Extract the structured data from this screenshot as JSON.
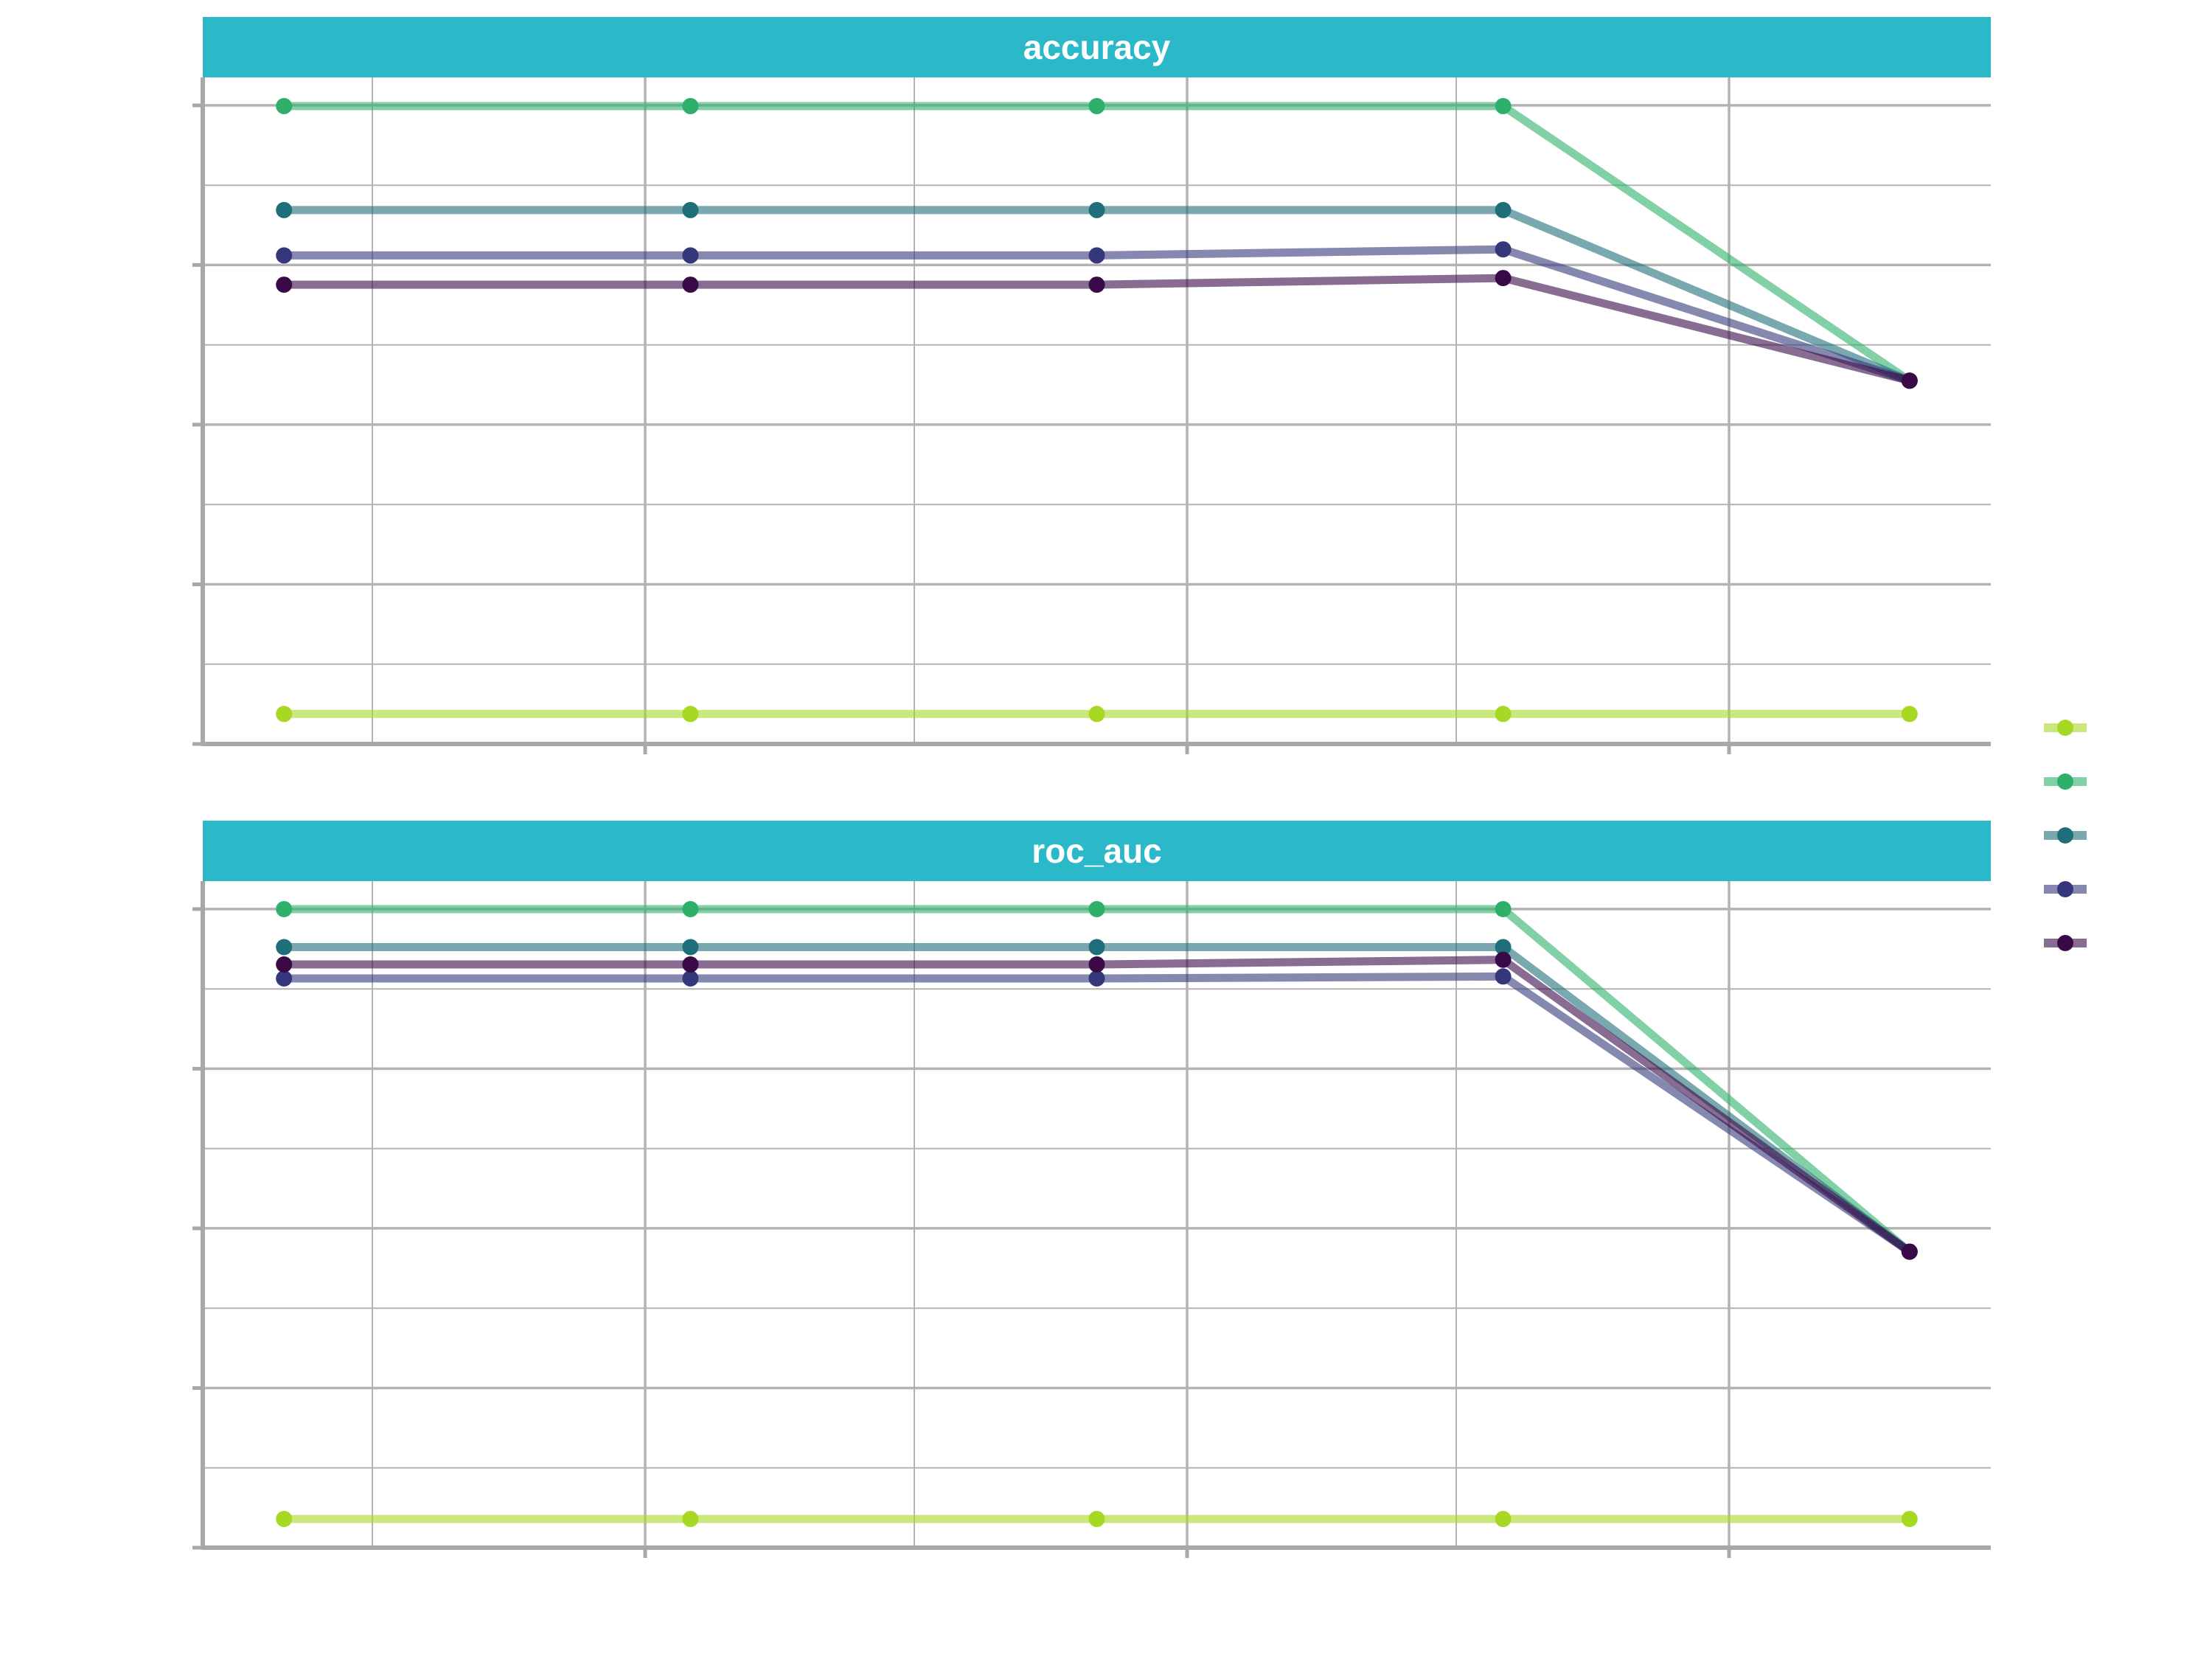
{
  "chart_data": {
    "type": "line",
    "facets": [
      {
        "title": "accuracy",
        "x": [
          1,
          2,
          3,
          4,
          5
        ],
        "xlim": [
          0.8,
          5.2
        ],
        "ylim": [
          0.0,
          1.0
        ],
        "series": [
          {
            "color": "#A6D824",
            "values": [
              0.045,
              0.045,
              0.045,
              0.045,
              0.045
            ]
          },
          {
            "color": "#2FB06A",
            "values": [
              0.957,
              0.957,
              0.957,
              0.957,
              0.545
            ]
          },
          {
            "color": "#1F6F7A",
            "values": [
              0.801,
              0.801,
              0.801,
              0.801,
              0.545
            ]
          },
          {
            "color": "#34387A",
            "values": [
              0.733,
              0.733,
              0.733,
              0.742,
              0.545
            ]
          },
          {
            "color": "#3A0A48",
            "values": [
              0.689,
              0.689,
              0.689,
              0.699,
              0.545
            ]
          }
        ]
      },
      {
        "title": "roc_auc",
        "x": [
          1,
          2,
          3,
          4,
          5
        ],
        "xlim": [
          0.8,
          5.2
        ],
        "ylim": [
          0.0,
          1.0
        ],
        "series": [
          {
            "color": "#A6D824",
            "values": [
              0.043,
              0.043,
              0.043,
              0.043,
              0.043
            ]
          },
          {
            "color": "#2FB06A",
            "values": [
              0.958,
              0.958,
              0.958,
              0.958,
              0.444
            ]
          },
          {
            "color": "#1F6F7A",
            "values": [
              0.901,
              0.901,
              0.901,
              0.901,
              0.444
            ]
          },
          {
            "color": "#34387A",
            "values": [
              0.854,
              0.854,
              0.854,
              0.857,
              0.444
            ]
          },
          {
            "color": "#3A0A48",
            "values": [
              0.875,
              0.875,
              0.875,
              0.882,
              0.444
            ]
          }
        ]
      }
    ],
    "legend": {
      "position": "right",
      "colors": [
        "#A6D824",
        "#2FB06A",
        "#1F6F7A",
        "#34387A",
        "#3A0A48"
      ]
    },
    "grid": true
  },
  "colors": {
    "strip": "#2BB9CA",
    "grid": "#B3B3B3",
    "axis": "#A8A8A8"
  }
}
